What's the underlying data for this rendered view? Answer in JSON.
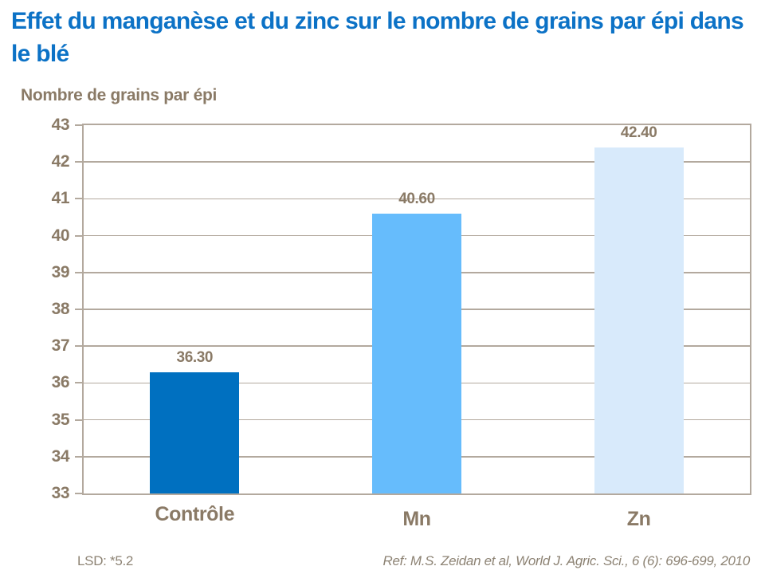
{
  "header": {
    "title": "Effet du manganèse et du zinc sur le nombre de grains par épi dans le blé"
  },
  "chart_data": {
    "type": "bar",
    "title": "Effet du manganèse et du zinc sur le nombre de grains par épi dans le blé",
    "ylabel": "Nombre de grains par épi",
    "xlabel": "",
    "categories": [
      "Contrôle",
      "Mn",
      "Zn"
    ],
    "values": [
      36.3,
      40.6,
      42.4
    ],
    "value_labels": [
      "36.30",
      "40.60",
      "42.40"
    ],
    "ylim": [
      33,
      43
    ],
    "yticks": [
      33,
      34,
      35,
      36,
      37,
      38,
      39,
      40,
      41,
      42,
      43
    ],
    "grid": true,
    "legend_position": "none",
    "bar_colors": [
      "#0070C0",
      "#66BCFC",
      "#D8EAFB"
    ]
  },
  "footer": {
    "lsd": "LSD: *5.2",
    "ref": "Ref: M.S. Zeidan et al, World J. Agric. Sci., 6 (6): 696-699, 2010"
  },
  "colors": {
    "title_blue": "#0C72C6",
    "brown_text": "#8A7A66",
    "footer_gray": "#8D8374",
    "grid": "#B3A99E",
    "background": "#FFFFFF"
  }
}
